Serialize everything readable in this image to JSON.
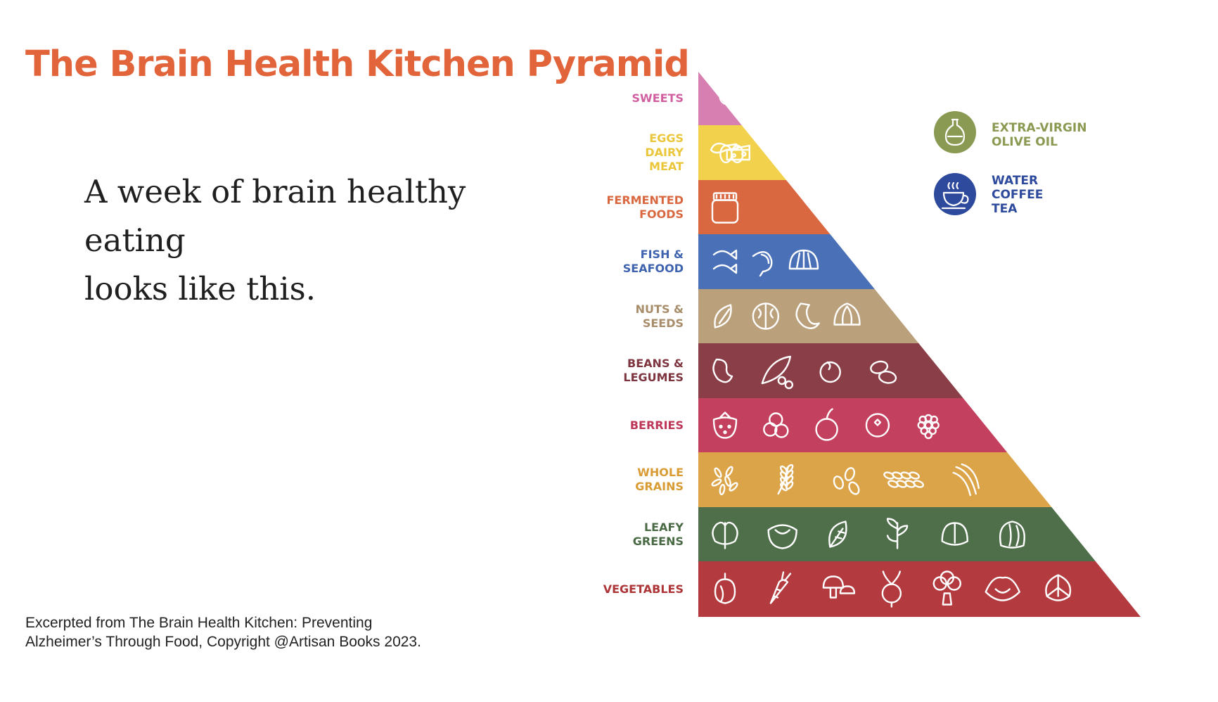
{
  "title": "The Brain Health Kitchen Pyramid",
  "subtitle": {
    "line1": "A week of brain healthy eating",
    "line2": "looks like this."
  },
  "credit": {
    "line1": "Excerpted from The Brain Health Kitchen: Preventing",
    "line2": "Alzheimer’s Through Food, Copyright @Artisan Books 2023."
  },
  "pyramid": {
    "tiers": [
      {
        "lines": [
          "SWEETS"
        ],
        "color": "#d77fb1",
        "label_color": "#d15fa0"
      },
      {
        "lines": [
          "EGGS",
          "DAIRY",
          "MEAT"
        ],
        "color": "#f2d24c",
        "label_color": "#eac63a"
      },
      {
        "lines": [
          "FERMENTED",
          "FOODS"
        ],
        "color": "#d9673f",
        "label_color": "#d9673f"
      },
      {
        "lines": [
          "FISH &",
          "SEAFOOD"
        ],
        "color": "#4a70b8",
        "label_color": "#3f63ae"
      },
      {
        "lines": [
          "NUTS &",
          "SEEDS"
        ],
        "color": "#bba07c",
        "label_color": "#a88d6a"
      },
      {
        "lines": [
          "BEANS &",
          "LEGUMES"
        ],
        "color": "#8a3f48",
        "label_color": "#7e3540"
      },
      {
        "lines": [
          "BERRIES"
        ],
        "color": "#c4405f",
        "label_color": "#bd3658"
      },
      {
        "lines": [
          "WHOLE",
          "GRAINS"
        ],
        "color": "#dca449",
        "label_color": "#d99b34"
      },
      {
        "lines": [
          "LEAFY",
          "GREENS"
        ],
        "color": "#4f6f4b",
        "label_color": "#4a6a45"
      },
      {
        "lines": [
          "VEGETABLES"
        ],
        "color": "#b33b3f",
        "label_color": "#ad3538"
      }
    ],
    "icons": [
      [
        "candy-icon"
      ],
      [
        "chicken-leg-icon",
        "eggs-icon",
        "cheese-icon"
      ],
      [
        "jar-icon"
      ],
      [
        "fish-icon",
        "shrimp-icon",
        "shell-icon"
      ],
      [
        "almond-icon",
        "walnut-icon",
        "cashew-icon",
        "hazelnut-icon"
      ],
      [
        "kidney-bean-icon",
        "pea-pod-icon",
        "chickpea-icon",
        "pinto-beans-icon"
      ],
      [
        "strawberry-icon",
        "blueberries-icon",
        "cherry-icon",
        "blueberry-icon",
        "raspberry-icon"
      ],
      [
        "rice-icon",
        "wheat-sprig-icon",
        "oats-icon",
        "barley-icon",
        "wheat-stalk-icon"
      ],
      [
        "kale-icon",
        "lettuce-icon",
        "leaf-icon",
        "arugula-icon",
        "spinach-icon",
        "cabbage-icon"
      ],
      [
        "onion-icon",
        "carrot-icon",
        "mushroom-icon",
        "beet-icon",
        "broccoli-icon",
        "cauliflower-icon",
        "artichoke-icon"
      ]
    ]
  },
  "legend": [
    {
      "icon": "olive-oil-bottle-icon",
      "lines": [
        "EXTRA-VIRGIN",
        "OLIVE OIL"
      ],
      "color": "#8a9a52"
    },
    {
      "icon": "teacup-icon",
      "lines": [
        "WATER",
        "COFFEE",
        "TEA"
      ],
      "color": "#2e4a9c"
    }
  ]
}
